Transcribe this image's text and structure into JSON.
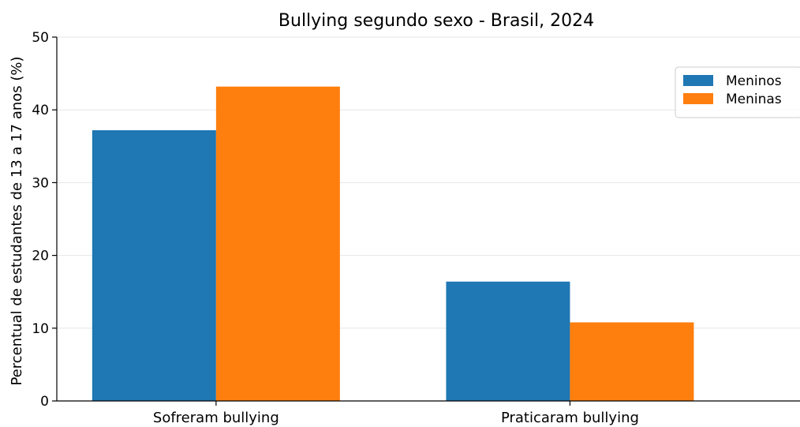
{
  "chart_data": {
    "type": "bar",
    "title": "Bullying segundo sexo - Brasil, 2024",
    "xlabel": "",
    "ylabel": "Percentual de estudantes de 13 a 17 anos (%)",
    "categories": [
      "Sofreram bullying",
      "Praticaram bullying"
    ],
    "series": [
      {
        "name": "Meninos",
        "values": [
          37.2,
          16.4
        ],
        "color": "#1f77b4"
      },
      {
        "name": "Meninas",
        "values": [
          43.2,
          10.8
        ],
        "color": "#ff7f0e"
      }
    ],
    "ylim": [
      0,
      50
    ],
    "yticks": [
      "0",
      "10",
      "20",
      "30",
      "40",
      "50"
    ],
    "grid": "horizontal",
    "legend_position": "top-right"
  }
}
